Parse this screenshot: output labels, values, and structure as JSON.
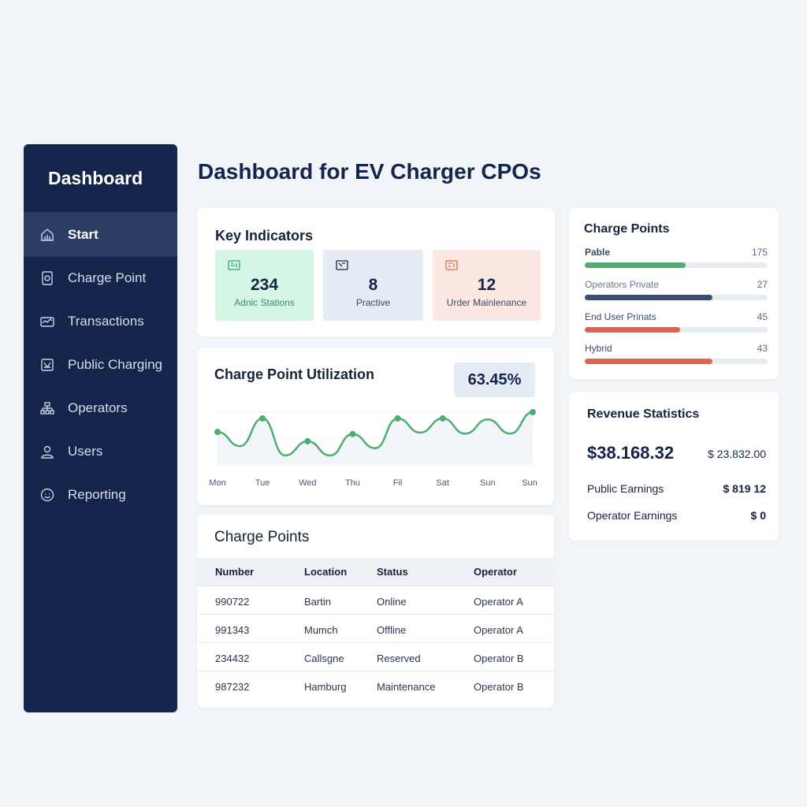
{
  "sidebar": {
    "title": "Dashboard",
    "items": [
      {
        "label": "Start",
        "icon": "home-icon",
        "active": true
      },
      {
        "label": "Charge Point",
        "icon": "charger-icon",
        "active": false
      },
      {
        "label": "Transactions",
        "icon": "transactions-icon",
        "active": false
      },
      {
        "label": "Public Charging",
        "icon": "public-charging-icon",
        "active": false
      },
      {
        "label": "Operators",
        "icon": "operators-icon",
        "active": false
      },
      {
        "label": "Users",
        "icon": "user-icon",
        "active": false
      },
      {
        "label": "Reporting",
        "icon": "reporting-icon",
        "active": false
      }
    ]
  },
  "page": {
    "title": "Dashboard for EV Charger CPOs"
  },
  "key_indicators": {
    "title": "Key Indicators",
    "items": [
      {
        "value": "234",
        "label": "Adnic Stations",
        "color": "#d5f5e5",
        "icon_color": "#3aa76d"
      },
      {
        "value": "8",
        "label": "Practive",
        "color": "#e6ecf5",
        "icon_color": "#14244a"
      },
      {
        "value": "12",
        "label": "Urder Mainlenance",
        "color": "#fbe8e2",
        "icon_color": "#d96b55"
      }
    ]
  },
  "utilization": {
    "title": "Charge Point Utilization",
    "percent": "63.45%",
    "line_color": "#4caf6e"
  },
  "chart_data": {
    "type": "line",
    "title": "Charge Point Utilization",
    "x": [
      "Mon",
      "Tue",
      "Wed",
      "Thu",
      "Fil",
      "Sat",
      "Sun",
      "Sun"
    ],
    "series": [
      {
        "values": [
          0.62,
          0.88,
          0.44,
          0.58,
          0.88,
          0.88,
          0.86,
          1.0
        ]
      }
    ],
    "ylim": [
      0,
      1
    ],
    "grid": true
  },
  "charge_points_table": {
    "title": "Charge Points",
    "headers": [
      "Number",
      "Location",
      "Status",
      "Operator"
    ],
    "rows": [
      [
        "990722",
        "Bartin",
        "Online",
        "Operator A"
      ],
      [
        "991343",
        "Mumch",
        "Offline",
        "Operator A"
      ],
      [
        "234432",
        "Callsgne",
        "Reserved",
        "Operator B"
      ],
      [
        "987232",
        "Hamburg",
        "Maintenance",
        "Operator B"
      ]
    ]
  },
  "charge_points_bars": {
    "title": "Charge Points",
    "items": [
      {
        "label": "Pable",
        "value": "175",
        "fraction": 0.55,
        "color": "#4caf6e"
      },
      {
        "label": "Operators Private",
        "value": "27",
        "fraction": 0.7,
        "color": "#3c4d6b"
      },
      {
        "label": "End User Prinats",
        "value": "45",
        "fraction": 0.52,
        "color": "#de6450"
      },
      {
        "label": "Hybrid",
        "value": "43",
        "fraction": 0.7,
        "color": "#de6450"
      }
    ]
  },
  "revenue": {
    "title": "Revenue Statistics",
    "total": "$38.168.32",
    "secondary": "$ 23.832.00",
    "rows": [
      {
        "label": "Public Earnings",
        "value": "$ 819 12"
      },
      {
        "label": "Operator Earnings",
        "value": "$ 0"
      }
    ]
  }
}
